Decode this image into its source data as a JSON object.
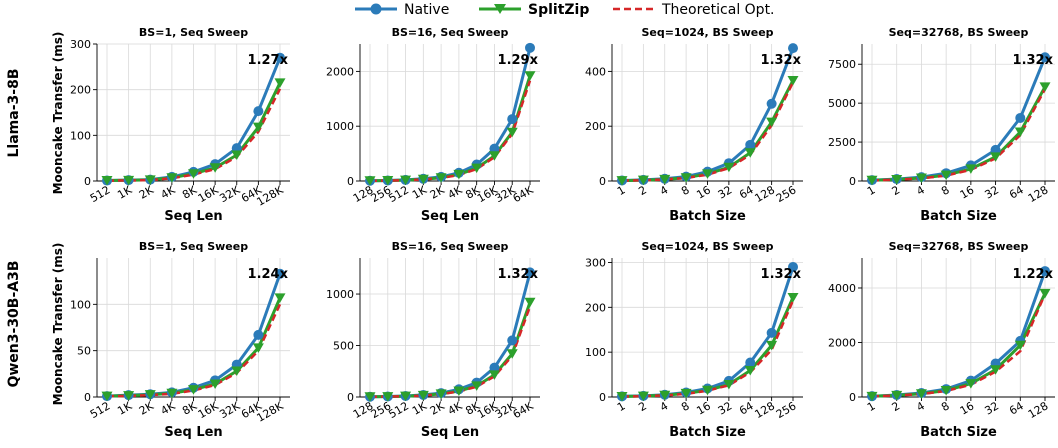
{
  "legend": {
    "native": "Native",
    "splitzip": "SplitZip",
    "theoretical": "Theoretical Opt."
  },
  "colors": {
    "native": "#2b7bb9",
    "splitzip": "#2ca02c",
    "theoretical": "#d62728"
  },
  "row_labels": [
    "Llama-3-8B",
    "Qwen3-30B-A3B"
  ],
  "ylabel": "Mooncake Transfer (ms)",
  "chart_data": [
    {
      "type": "line",
      "row": 0,
      "col": 0,
      "title": "BS=1, Seq Sweep",
      "xlabel": "Seq Len",
      "categories": [
        "512",
        "1K",
        "2K",
        "4K",
        "8K",
        "16K",
        "32K",
        "64K",
        "128K"
      ],
      "ylim": [
        0,
        300
      ],
      "yticks": [
        0,
        100,
        200,
        300
      ],
      "ratio_label": "1.27x",
      "series": [
        {
          "name": "Native",
          "values": [
            1,
            2,
            3,
            9,
            20,
            37,
            72,
            153,
            270
          ]
        },
        {
          "name": "SplitZip",
          "values": [
            1,
            1.5,
            2.5,
            7,
            16,
            29,
            57,
            118,
            215
          ]
        },
        {
          "name": "Theoretical Opt.",
          "values": [
            0.8,
            1.2,
            2,
            6,
            14,
            26,
            53,
            108,
            202
          ]
        }
      ]
    },
    {
      "type": "line",
      "row": 0,
      "col": 1,
      "title": "BS=16, Seq Sweep",
      "xlabel": "Seq Len",
      "categories": [
        "128",
        "256",
        "512",
        "1K",
        "2K",
        "4K",
        "8K",
        "16K",
        "32K",
        "64K"
      ],
      "ylim": [
        0,
        2500
      ],
      "yticks": [
        0,
        1000,
        2000
      ],
      "ratio_label": "1.29x",
      "series": [
        {
          "name": "Native",
          "values": [
            5,
            10,
            20,
            40,
            75,
            150,
            300,
            590,
            1130,
            2430
          ]
        },
        {
          "name": "SplitZip",
          "values": [
            4,
            8,
            16,
            32,
            60,
            120,
            235,
            460,
            890,
            1920
          ]
        },
        {
          "name": "Theoretical Opt.",
          "values": [
            3,
            7,
            14,
            28,
            55,
            108,
            218,
            435,
            860,
            1830
          ]
        }
      ]
    },
    {
      "type": "line",
      "row": 0,
      "col": 2,
      "title": "Seq=1024, BS Sweep",
      "xlabel": "Batch Size",
      "categories": [
        "1",
        "2",
        "4",
        "8",
        "16",
        "32",
        "64",
        "128",
        "256"
      ],
      "ylim": [
        0,
        500
      ],
      "yticks": [
        0,
        200,
        400
      ],
      "ratio_label": "1.32x",
      "series": [
        {
          "name": "Native",
          "values": [
            2,
            4,
            8,
            16,
            34,
            65,
            132,
            282,
            485
          ]
        },
        {
          "name": "SplitZip",
          "values": [
            1.5,
            3,
            6,
            12,
            26,
            50,
            103,
            215,
            367
          ]
        },
        {
          "name": "Theoretical Opt.",
          "values": [
            1.3,
            2.6,
            5.5,
            11,
            23,
            47,
            96,
            203,
            360
          ]
        }
      ]
    },
    {
      "type": "line",
      "row": 0,
      "col": 3,
      "title": "Seq=32768, BS Sweep",
      "xlabel": "Batch Size",
      "categories": [
        "1",
        "2",
        "4",
        "8",
        "16",
        "32",
        "64",
        "128"
      ],
      "ylim": [
        0,
        8800
      ],
      "yticks": [
        0,
        2500,
        5000,
        7500
      ],
      "ratio_label": "1.32x",
      "series": [
        {
          "name": "Native",
          "values": [
            60,
            125,
            250,
            500,
            1000,
            2000,
            4050,
            7950
          ]
        },
        {
          "name": "SplitZip",
          "values": [
            45,
            95,
            190,
            380,
            780,
            1550,
            3150,
            6050
          ]
        },
        {
          "name": "Theoretical Opt.",
          "values": [
            40,
            85,
            170,
            350,
            720,
            1450,
            2950,
            5900
          ]
        }
      ]
    },
    {
      "type": "line",
      "row": 1,
      "col": 0,
      "title": "BS=1, Seq Sweep",
      "xlabel": "Seq Len",
      "categories": [
        "512",
        "1K",
        "2K",
        "4K",
        "8K",
        "16K",
        "32K",
        "64K",
        "128K"
      ],
      "ylim": [
        0,
        150
      ],
      "yticks": [
        0,
        50,
        100
      ],
      "ratio_label": "1.24x",
      "series": [
        {
          "name": "Native",
          "values": [
            1,
            2,
            3,
            5,
            10,
            18,
            35,
            67,
            133
          ]
        },
        {
          "name": "SplitZip",
          "values": [
            1,
            1.5,
            2.5,
            4,
            8,
            14,
            28,
            53,
            107
          ]
        },
        {
          "name": "Theoretical Opt.",
          "values": [
            0.8,
            1.2,
            2,
            3.5,
            7,
            13,
            26,
            50,
            100
          ]
        }
      ]
    },
    {
      "type": "line",
      "row": 1,
      "col": 1,
      "title": "BS=16, Seq Sweep",
      "xlabel": "Seq Len",
      "categories": [
        "128",
        "256",
        "512",
        "1K",
        "2K",
        "4K",
        "8K",
        "16K",
        "32K",
        "64K"
      ],
      "ylim": [
        0,
        1350
      ],
      "yticks": [
        0,
        500,
        1000
      ],
      "ratio_label": "1.32x",
      "series": [
        {
          "name": "Native",
          "values": [
            3,
            5,
            10,
            20,
            38,
            75,
            140,
            285,
            550,
            1210
          ]
        },
        {
          "name": "SplitZip",
          "values": [
            2.5,
            4,
            8,
            16,
            30,
            58,
            108,
            215,
            420,
            920
          ]
        },
        {
          "name": "Theoretical Opt.",
          "values": [
            2,
            3.5,
            7,
            14,
            27,
            53,
            100,
            200,
            400,
            880
          ]
        }
      ]
    },
    {
      "type": "line",
      "row": 1,
      "col": 2,
      "title": "Seq=1024, BS Sweep",
      "xlabel": "Batch Size",
      "categories": [
        "1",
        "2",
        "4",
        "8",
        "16",
        "32",
        "64",
        "128",
        "256"
      ],
      "ylim": [
        0,
        310
      ],
      "yticks": [
        0,
        100,
        200,
        300
      ],
      "ratio_label": "1.32x",
      "series": [
        {
          "name": "Native",
          "values": [
            1.5,
            2.5,
            5,
            10,
            19,
            36,
            77,
            143,
            290
          ]
        },
        {
          "name": "SplitZip",
          "values": [
            1.2,
            2,
            4,
            8,
            15,
            28,
            59,
            115,
            222
          ]
        },
        {
          "name": "Theoretical Opt.",
          "values": [
            1,
            1.8,
            3.5,
            7,
            14,
            26,
            55,
            105,
            215
          ]
        }
      ]
    },
    {
      "type": "line",
      "row": 1,
      "col": 3,
      "title": "Seq=32768, BS Sweep",
      "xlabel": "Batch Size",
      "categories": [
        "1",
        "2",
        "4",
        "8",
        "16",
        "32",
        "64",
        "128"
      ],
      "ylim": [
        0,
        5100
      ],
      "yticks": [
        0,
        2000,
        4000
      ],
      "ratio_label": "1.22x",
      "series": [
        {
          "name": "Native",
          "values": [
            30,
            75,
            145,
            290,
            600,
            1230,
            2060,
            4620
          ]
        },
        {
          "name": "SplitZip",
          "values": [
            25,
            60,
            120,
            240,
            490,
            1000,
            1900,
            3800
          ]
        },
        {
          "name": "Theoretical Opt.",
          "values": [
            22,
            55,
            110,
            220,
            450,
            930,
            1680,
            3780
          ]
        }
      ]
    }
  ]
}
